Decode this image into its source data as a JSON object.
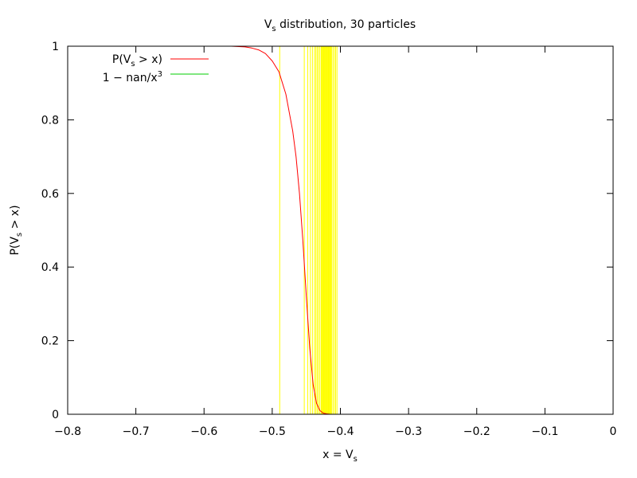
{
  "chart_data": {
    "type": "line",
    "title": {
      "main": "V",
      "sub": "s",
      "rest": " distribution, 30 particles"
    },
    "xlabel": {
      "main": "x = V",
      "sub": "s"
    },
    "ylabel": {
      "main": "P(V",
      "sub": "s",
      "rest": " > x)"
    },
    "xlim": [
      -0.8,
      0
    ],
    "ylim": [
      0,
      1
    ],
    "x_ticks": [
      -0.8,
      -0.7,
      -0.6,
      -0.5,
      -0.4,
      -0.3,
      -0.2,
      -0.1,
      0
    ],
    "x_tick_labels": [
      "−0.8",
      "−0.7",
      "−0.6",
      "−0.5",
      "−0.4",
      "−0.3",
      "−0.2",
      "−0.1",
      "0"
    ],
    "y_ticks": [
      0,
      0.2,
      0.4,
      0.6,
      0.8,
      1
    ],
    "y_tick_labels": [
      "0",
      "0.2",
      "0.4",
      "0.6",
      "0.8",
      "1"
    ],
    "grid": false,
    "legend_position": "top-left",
    "legend": [
      {
        "label_main": "P(V",
        "label_sub": "s",
        "label_rest": " > x)",
        "color": "#ff0000"
      },
      {
        "label_main": "1 − nan/x",
        "label_sup": "3",
        "color": "#00cc00"
      }
    ],
    "series": [
      {
        "name": "P(Vs > x)",
        "color": "#ff0000",
        "x": [
          -0.56,
          -0.54,
          -0.53,
          -0.52,
          -0.51,
          -0.5,
          -0.49,
          -0.48,
          -0.47,
          -0.465,
          -0.46,
          -0.455,
          -0.45,
          -0.445,
          -0.44,
          -0.435,
          -0.43,
          -0.425,
          -0.42,
          -0.415,
          -0.41,
          -0.4
        ],
        "y": [
          1.0,
          0.998,
          0.995,
          0.99,
          0.98,
          0.96,
          0.93,
          0.87,
          0.77,
          0.7,
          0.6,
          0.47,
          0.32,
          0.18,
          0.08,
          0.03,
          0.01,
          0.003,
          0.001,
          0,
          0,
          0
        ]
      }
    ],
    "sample_lines": {
      "color": "#ffff00",
      "x": [
        -0.489,
        -0.453,
        -0.448,
        -0.444,
        -0.441,
        -0.438,
        -0.436,
        -0.434,
        -0.432,
        -0.43,
        -0.428,
        -0.427,
        -0.426,
        -0.425,
        -0.424,
        -0.423,
        -0.422,
        -0.421,
        -0.42,
        -0.419,
        -0.418,
        -0.417,
        -0.416,
        -0.415,
        -0.414,
        -0.413,
        -0.411,
        -0.409,
        -0.407,
        -0.405
      ]
    }
  }
}
